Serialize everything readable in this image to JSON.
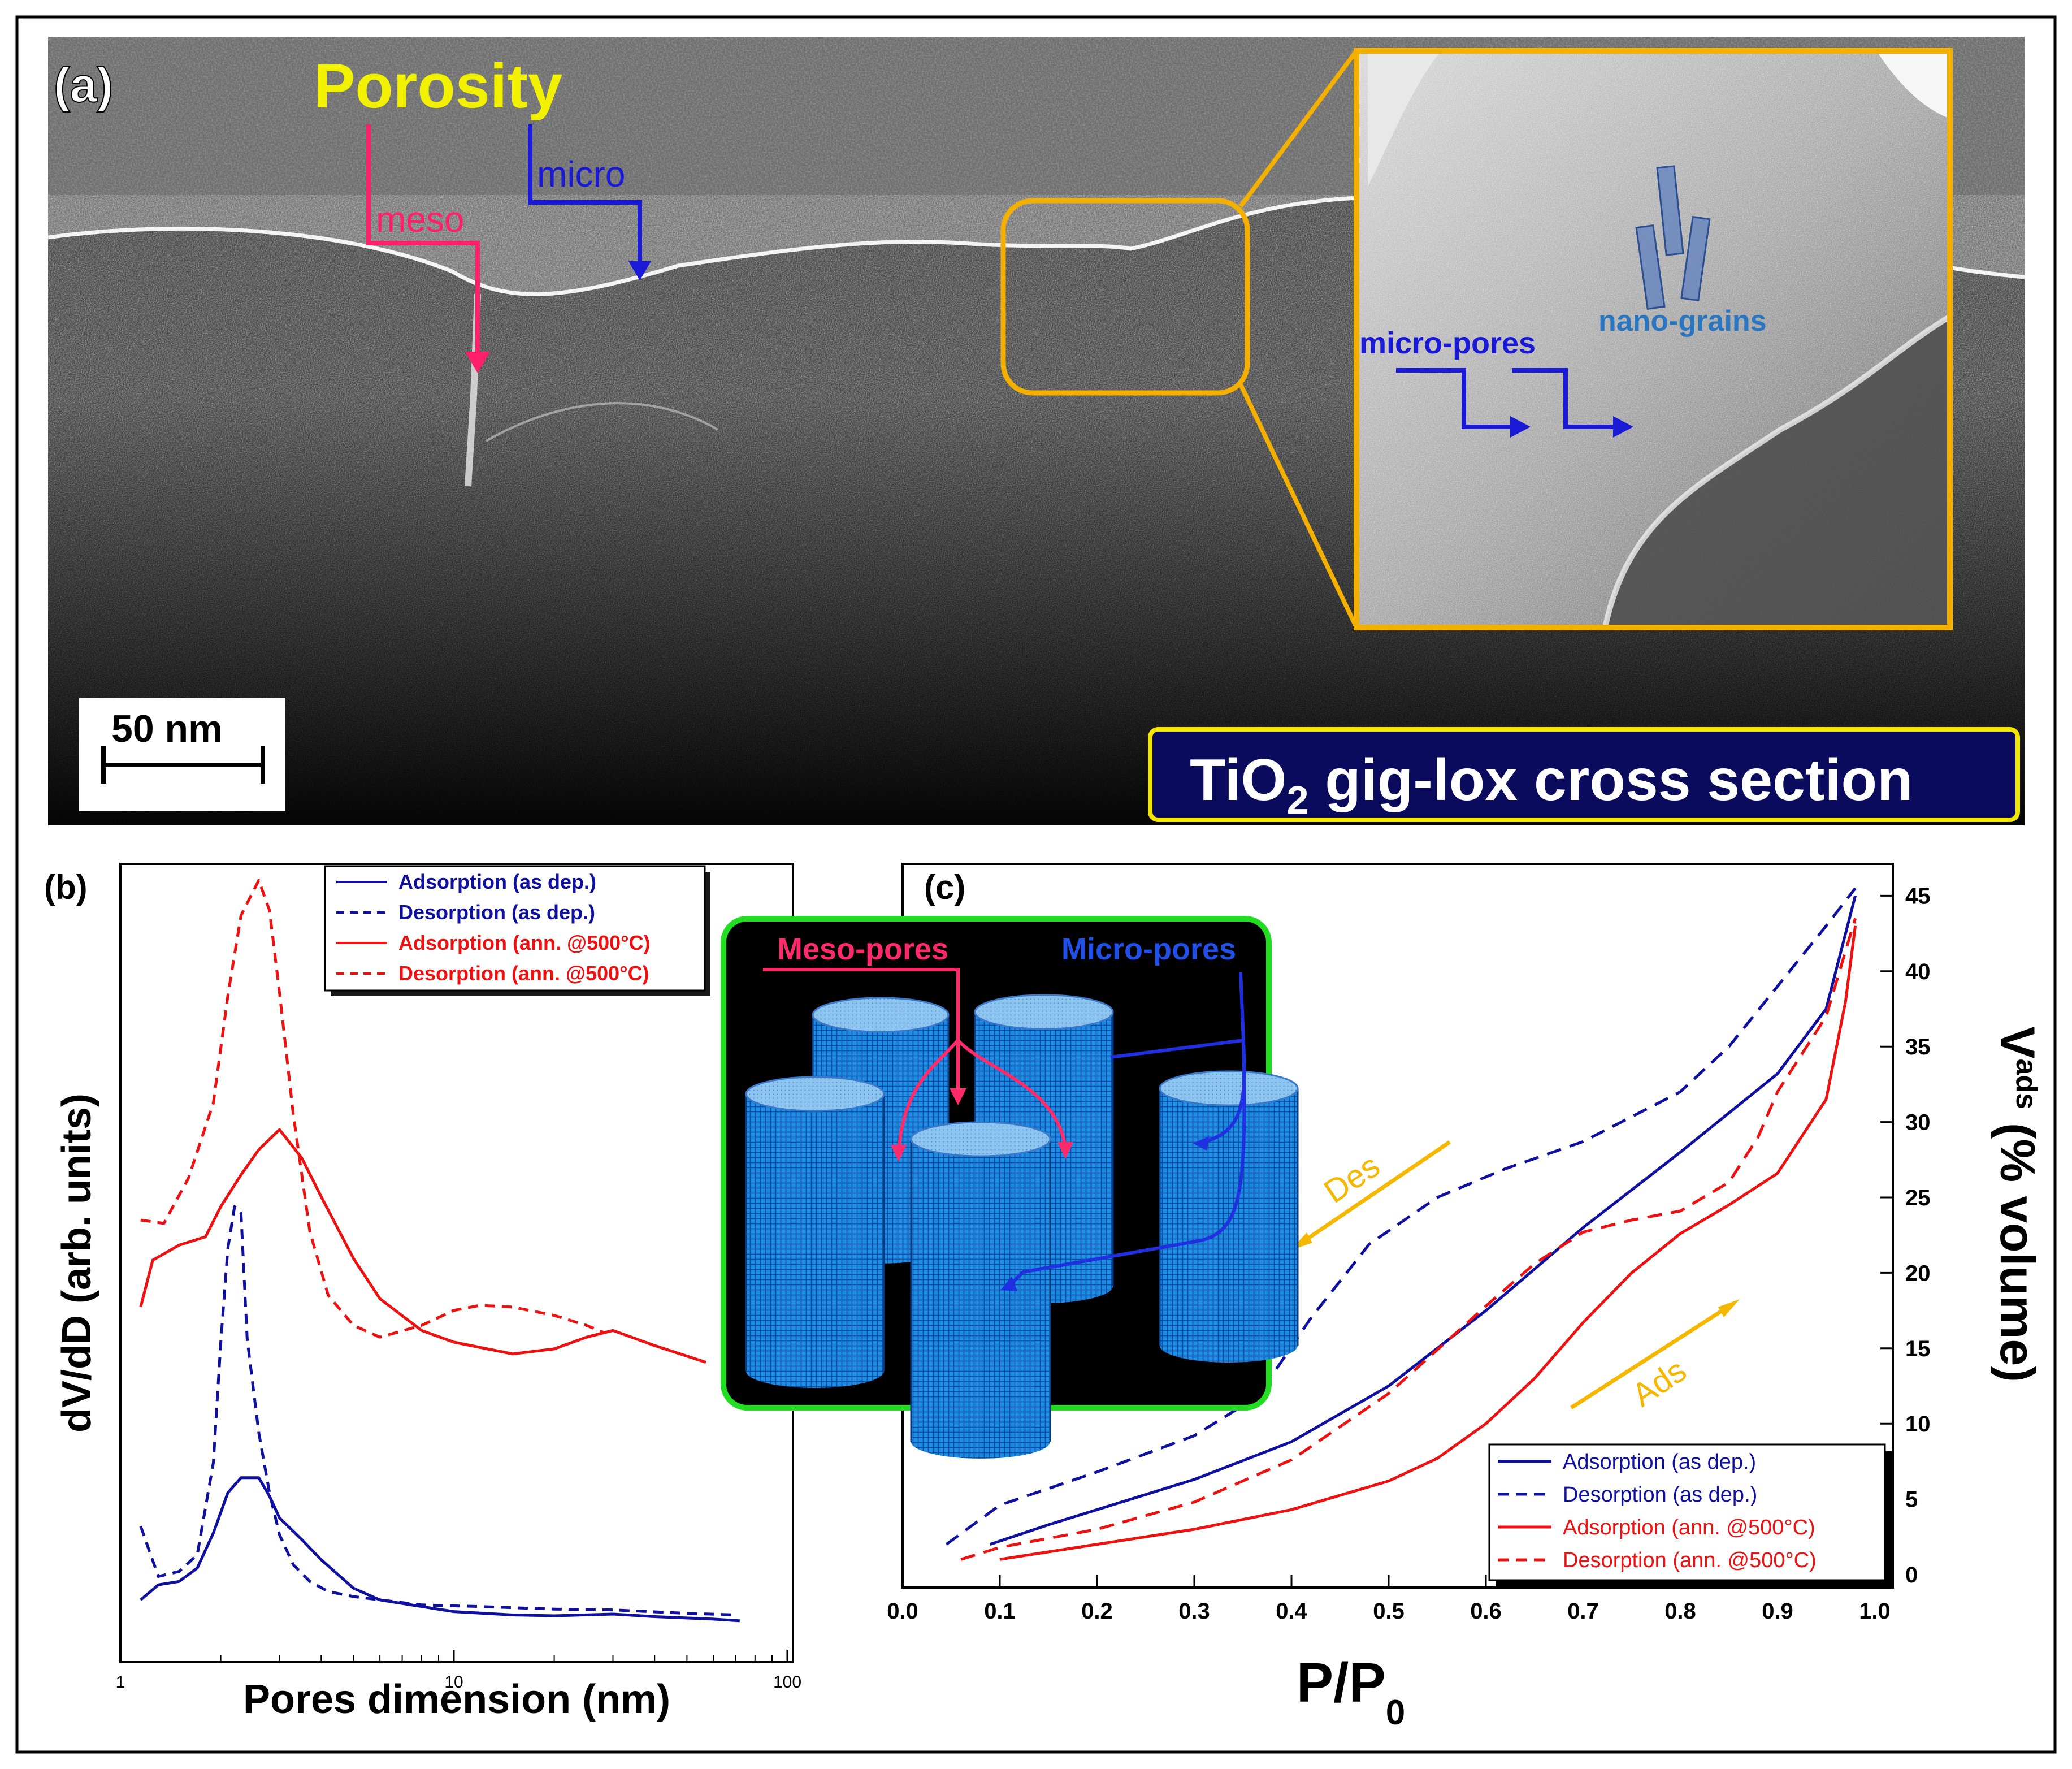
{
  "panel_a": {
    "label": "(a)",
    "porosity_title": "Porosity",
    "meso_label": "meso",
    "micro_label": "micro",
    "inset_micro_pores": "micro-pores",
    "inset_nano_grains": "nano-grains",
    "scale_bar": "50 nm",
    "caption_pre": "TiO",
    "caption_sub": "2",
    "caption_post": " gig-lox cross section",
    "colors": {
      "porosity": "#f2f200",
      "meso": "#ff1f6b",
      "micro": "#1a1ad6",
      "inset_border": "#f4b000",
      "caption_bg": "#0b0b5e",
      "caption_border": "#f2e600"
    }
  },
  "panel_b": {
    "label": "(b)"
  },
  "panel_c": {
    "label": "(c)"
  },
  "inset_c": {
    "meso_label": "Meso-pores",
    "micro_label": "Micro-pores"
  },
  "chart_data": [
    {
      "type": "line",
      "id": "pore-distribution",
      "xscale": "log",
      "xlim": [
        1,
        100
      ],
      "xticks": [
        "1",
        "10",
        "100"
      ],
      "xlabel": "Pores dimension (nm)",
      "ylabel": "dV/dD (arb. units)",
      "legend": [
        "Adsorption (as dep.)",
        "Desorption (as dep.)",
        "Adsorption (ann. @500°C)",
        "Desorption (ann. @500°C)"
      ],
      "legend_position": "top-right",
      "series": [
        {
          "name": "Adsorption (as dep.)",
          "color": "#1010a0",
          "dash": "solid",
          "x": [
            1.15,
            1.3,
            1.5,
            1.7,
            1.9,
            2.1,
            2.3,
            2.6,
            2.8,
            3.0,
            3.5,
            4,
            5,
            6,
            8,
            10,
            15,
            20,
            30,
            40,
            60,
            72
          ],
          "y": [
            2.2,
            3.1,
            3.3,
            4.1,
            6.2,
            8.6,
            9.5,
            9.5,
            8.4,
            7.1,
            5.8,
            4.6,
            2.9,
            2.2,
            1.8,
            1.5,
            1.3,
            1.25,
            1.35,
            1.2,
            1.05,
            0.95
          ]
        },
        {
          "name": "Desorption (as dep.)",
          "color": "#1010a0",
          "dash": "dashed",
          "x": [
            1.15,
            1.3,
            1.5,
            1.7,
            1.9,
            2.0,
            2.1,
            2.2,
            2.3,
            2.4,
            2.6,
            2.8,
            3.0,
            3.3,
            3.7,
            4.2,
            5,
            6,
            8,
            12,
            20,
            30,
            50,
            70
          ],
          "y": [
            6.6,
            3.6,
            3.9,
            4.9,
            10.4,
            17.6,
            23.2,
            25.7,
            25.3,
            17.8,
            12.2,
            8.6,
            6.1,
            4.3,
            3.3,
            2.7,
            2.4,
            2.2,
            1.9,
            1.8,
            1.65,
            1.6,
            1.4,
            1.3
          ]
        },
        {
          "name": "Adsorption (ann. @500°C)",
          "color": "#ee1111",
          "dash": "solid",
          "x": [
            1.15,
            1.25,
            1.5,
            1.8,
            2.0,
            2.3,
            2.6,
            3.0,
            3.5,
            4,
            5,
            6,
            8,
            10,
            15,
            20,
            25,
            30,
            40,
            57
          ],
          "y": [
            19.7,
            22.5,
            23.4,
            23.9,
            25.7,
            27.6,
            29.1,
            30.3,
            28.6,
            26.3,
            22.6,
            20.2,
            18.3,
            17.6,
            16.9,
            17.2,
            17.9,
            18.3,
            17.4,
            16.4
          ]
        },
        {
          "name": "Desorption (ann. @500°C)",
          "color": "#ee1111",
          "dash": "dashed",
          "x": [
            1.15,
            1.35,
            1.6,
            1.9,
            2.1,
            2.3,
            2.6,
            2.8,
            3.0,
            3.3,
            3.7,
            4.2,
            5,
            6,
            8,
            10,
            12,
            15,
            20,
            25,
            28
          ],
          "y": [
            24.9,
            24.7,
            27.4,
            31.9,
            38.3,
            43.1,
            45.2,
            43.4,
            38.5,
            31.2,
            24.2,
            20.4,
            18.6,
            17.9,
            18.6,
            19.5,
            19.8,
            19.7,
            19.2,
            18.6,
            18.2
          ]
        }
      ]
    },
    {
      "type": "line",
      "id": "isotherm",
      "xlim": [
        0.0,
        1.0
      ],
      "ylim": [
        0,
        45
      ],
      "xticks": [
        "0.0",
        "0.1",
        "0.2",
        "0.3",
        "0.4",
        "0.5",
        "0.6",
        "0.7",
        "0.8",
        "0.9",
        "1.0"
      ],
      "yticks": [
        "0",
        "5",
        "10",
        "15",
        "20",
        "25",
        "30",
        "35",
        "40",
        "45"
      ],
      "xlabel_main": "P/P",
      "xlabel_sub": "0",
      "ylabel_main": "V",
      "ylabel_sub": "ads",
      "ylabel_rest": " (% volume)",
      "legend": [
        "Adsorption (as dep.)",
        "Desorption (as dep.)",
        "Adsorption (ann. @500°C)",
        "Desorption (ann. @500°C)"
      ],
      "legend_position": "bottom-right",
      "annotations": [
        {
          "text": "Des",
          "color": "#f5b700"
        },
        {
          "text": "Ads",
          "color": "#f5b700"
        }
      ],
      "series": [
        {
          "name": "Adsorption (as dep.)",
          "color": "#1010a0",
          "dash": "solid",
          "x": [
            0.09,
            0.15,
            0.2,
            0.3,
            0.4,
            0.5,
            0.6,
            0.7,
            0.8,
            0.9,
            0.95,
            0.98
          ],
          "y": [
            2.0,
            3.3,
            4.3,
            6.3,
            8.8,
            12.5,
            17.5,
            23.0,
            28.0,
            33.2,
            37.5,
            45.0
          ]
        },
        {
          "name": "Desorption (as dep.)",
          "color": "#1010a0",
          "dash": "dashed",
          "x": [
            0.045,
            0.1,
            0.2,
            0.3,
            0.35,
            0.38,
            0.42,
            0.48,
            0.55,
            0.62,
            0.7,
            0.8,
            0.85,
            0.9,
            0.95,
            0.98
          ],
          "y": [
            2.0,
            4.6,
            6.8,
            9.2,
            11.2,
            13.2,
            17.0,
            21.9,
            25.0,
            26.9,
            28.7,
            32.0,
            35.0,
            39.0,
            43.0,
            45.5
          ]
        },
        {
          "name": "Adsorption (ann. @500°C)",
          "color": "#ee1111",
          "dash": "solid",
          "x": [
            0.1,
            0.2,
            0.3,
            0.4,
            0.5,
            0.55,
            0.6,
            0.65,
            0.7,
            0.75,
            0.8,
            0.85,
            0.9,
            0.95,
            0.97,
            0.98
          ],
          "y": [
            1.0,
            2.0,
            3.0,
            4.3,
            6.2,
            7.7,
            10.0,
            13.0,
            16.7,
            20.0,
            22.6,
            24.5,
            26.6,
            31.5,
            38.0,
            43.0
          ]
        },
        {
          "name": "Desorption (ann. @500°C)",
          "color": "#ee1111",
          "dash": "dashed",
          "x": [
            0.06,
            0.1,
            0.2,
            0.3,
            0.4,
            0.5,
            0.6,
            0.65,
            0.7,
            0.75,
            0.8,
            0.85,
            0.88,
            0.9,
            0.95,
            0.98
          ],
          "y": [
            1.0,
            1.8,
            3.0,
            4.8,
            7.6,
            12.0,
            17.8,
            20.6,
            22.7,
            23.5,
            24.1,
            26.0,
            29.0,
            32.0,
            37.0,
            43.5
          ]
        }
      ]
    }
  ]
}
